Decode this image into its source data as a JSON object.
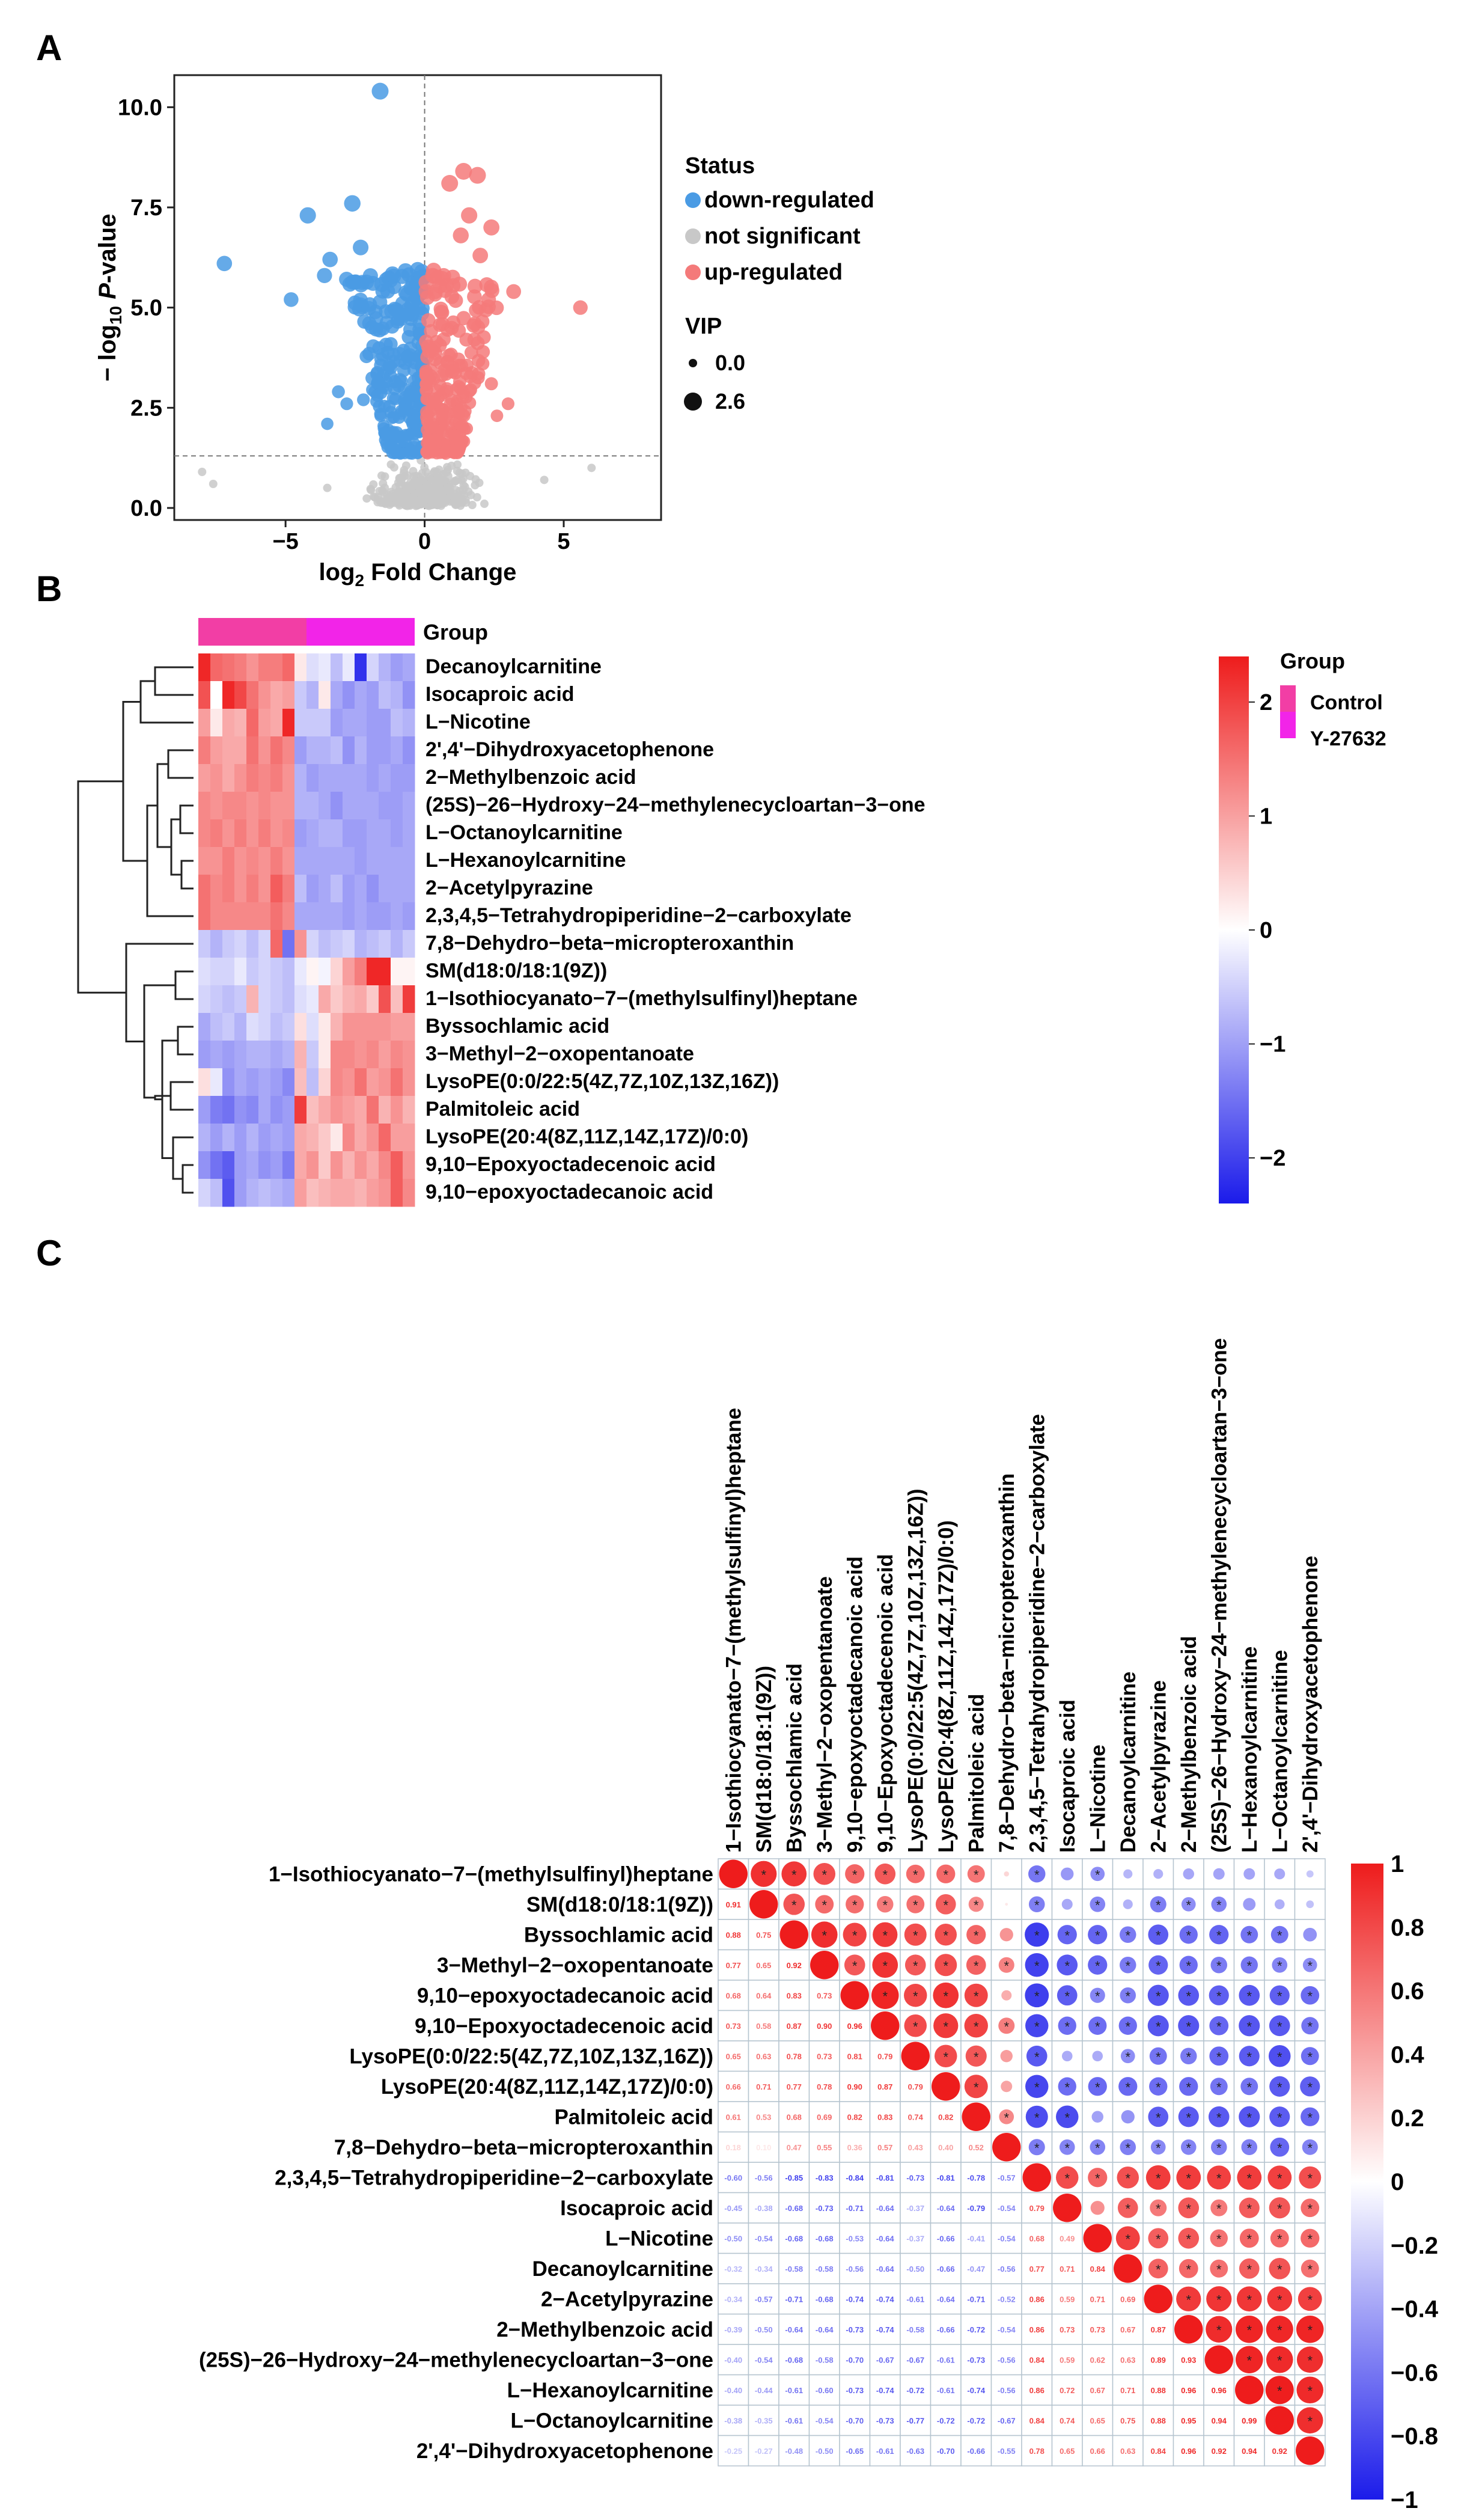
{
  "panel_labels": {
    "a": "A",
    "b": "B",
    "c": "C"
  },
  "colors": {
    "down": "#4a9be4",
    "ns": "#c8c8c8",
    "up": "#f47a7a",
    "heat_low": "#1b1bea",
    "heat_mid": "#ffffff",
    "heat_high": "#ee1c1c",
    "control": "#f23ea5",
    "treated": "#f224e8"
  },
  "chart_data": [
    {
      "type": "scatter",
      "panel": "A",
      "xlabel_main": "log",
      "xlabel_sub": "2",
      "xlabel_rest": " Fold Change",
      "ylabel_prefix": "− log",
      "ylabel_sub": "10",
      "ylabel_italic": "P",
      "ylabel_rest": "-value",
      "xlim": [
        -9.0,
        8.5
      ],
      "ylim": [
        -0.3,
        10.8
      ],
      "xticks": [
        -5,
        0,
        5
      ],
      "yticks": [
        0.0,
        2.5,
        5.0,
        7.5,
        10.0
      ],
      "ytick_labels": [
        "0.0",
        "2.5",
        "5.0",
        "7.5",
        "10.0"
      ],
      "p_threshold_y": 1.3,
      "fc_threshold_x": 0,
      "legend": {
        "status_title": "Status",
        "status": [
          {
            "label": "down-regulated",
            "key": "down"
          },
          {
            "label": "not significant",
            "key": "ns"
          },
          {
            "label": "up-regulated",
            "key": "up"
          }
        ],
        "vip_title": "VIP",
        "vip": [
          "0.0",
          "2.6"
        ]
      },
      "highlight_points": {
        "down": [
          [
            -1.6,
            10.4
          ],
          [
            -7.2,
            6.1
          ],
          [
            -4.8,
            5.2
          ],
          [
            -3.6,
            5.8
          ],
          [
            -4.2,
            7.3
          ],
          [
            -2.6,
            7.6
          ],
          [
            -3.4,
            6.2
          ],
          [
            -2.3,
            6.5
          ],
          [
            -3.1,
            2.9
          ],
          [
            -2.8,
            2.6
          ],
          [
            -2.2,
            2.7
          ],
          [
            -3.5,
            2.1
          ]
        ],
        "up": [
          [
            5.6,
            5.0
          ],
          [
            3.2,
            5.4
          ],
          [
            1.4,
            8.4
          ],
          [
            1.9,
            8.3
          ],
          [
            0.9,
            8.1
          ],
          [
            1.6,
            7.3
          ],
          [
            2.4,
            7.0
          ],
          [
            1.3,
            6.8
          ],
          [
            2.0,
            6.3
          ],
          [
            2.3,
            5.2
          ],
          [
            1.8,
            4.6
          ],
          [
            1.5,
            4.2
          ],
          [
            2.4,
            3.1
          ],
          [
            3.0,
            2.6
          ],
          [
            2.6,
            2.3
          ]
        ],
        "ns": [
          [
            -8.0,
            0.9
          ],
          [
            -7.6,
            0.6
          ],
          [
            4.3,
            0.7
          ],
          [
            6.0,
            1.0
          ],
          [
            -3.5,
            0.5
          ]
        ]
      },
      "counts": {
        "down": 260,
        "up": 240,
        "ns": 380
      }
    },
    {
      "type": "heatmap",
      "panel": "B",
      "group_label": "Group",
      "legend_title": "Group",
      "groups": [
        "Control",
        "Y-27632"
      ],
      "colorbar_ticks": [
        2,
        1,
        0,
        -1,
        -2
      ],
      "colorbar_labels": [
        "2",
        "1",
        "0",
        "−1",
        "−2"
      ],
      "rows": [
        "Decanoylcarnitine",
        "Isocaproic acid",
        "L−Nicotine",
        "2',4'−Dihydroxyacetophenone",
        "2−Methylbenzoic acid",
        "(25S)−26−Hydroxy−24−methylenecycloartan−3−one",
        "L−Octanoylcarnitine",
        "L−Hexanoylcarnitine",
        "2−Acetylpyrazine",
        "2,3,4,5−Tetrahydropiperidine−2−carboxylate",
        "7,8−Dehydro−beta−micropteroxanthin",
        "SM(d18:0/18:1(9Z))",
        "1−Isothiocyanato−7−(methylsulfinyl)heptane",
        "Byssochlamic acid",
        "3−Methyl−2−oxopentanoate",
        "LysoPE(0:0/22:5(4Z,7Z,10Z,13Z,16Z))",
        "Palmitoleic acid",
        "LysoPE(20:4(8Z,11Z,14Z,17Z)/0:0)",
        "9,10−Epoxyoctadecenoic acid",
        "9,10−epoxyoctadecanoic acid"
      ],
      "values": [
        [
          2.0,
          1.4,
          1.3,
          1.2,
          1.0,
          1.2,
          1.2,
          1.4,
          0.2,
          -0.3,
          -0.2,
          -0.6,
          -0.2,
          -1.9,
          -0.4,
          -0.7,
          -0.9,
          -0.8
        ],
        [
          1.6,
          0.0,
          2.0,
          1.7,
          1.3,
          1.0,
          0.8,
          0.9,
          -0.5,
          -0.7,
          0.2,
          -0.8,
          -1.0,
          -0.8,
          -0.9,
          -0.6,
          -0.7,
          -1.0
        ],
        [
          0.9,
          0.2,
          0.8,
          0.7,
          1.4,
          0.9,
          0.8,
          2.0,
          -0.5,
          -0.5,
          -0.5,
          -0.9,
          -0.8,
          -0.8,
          -0.9,
          -0.9,
          -0.6,
          -0.7
        ],
        [
          1.2,
          0.9,
          0.8,
          0.8,
          1.3,
          1.0,
          1.3,
          1.1,
          -0.9,
          -0.7,
          -0.7,
          -0.6,
          -1.0,
          -0.7,
          -0.9,
          -0.9,
          -0.8,
          -1.0
        ],
        [
          0.9,
          1.0,
          0.8,
          1.0,
          1.2,
          1.1,
          1.2,
          1.0,
          -0.7,
          -0.9,
          -0.8,
          -0.8,
          -0.8,
          -0.8,
          -0.9,
          -0.8,
          -0.9,
          -0.9
        ],
        [
          1.1,
          1.0,
          1.1,
          1.1,
          1.0,
          1.1,
          1.0,
          1.0,
          -0.7,
          -0.7,
          -0.8,
          -1.0,
          -0.8,
          -0.8,
          -0.8,
          -0.9,
          -0.9,
          -0.8
        ],
        [
          1.1,
          1.2,
          1.0,
          1.2,
          1.0,
          1.2,
          1.0,
          1.1,
          -0.9,
          -0.8,
          -0.7,
          -0.7,
          -0.9,
          -0.9,
          -0.8,
          -0.8,
          -0.9,
          -0.8
        ],
        [
          1.0,
          1.0,
          1.2,
          1.0,
          1.1,
          1.0,
          1.2,
          1.0,
          -0.8,
          -0.8,
          -0.8,
          -0.8,
          -0.8,
          -0.9,
          -0.8,
          -0.8,
          -0.8,
          -0.8
        ],
        [
          1.3,
          1.1,
          1.2,
          1.0,
          1.2,
          1.0,
          1.5,
          1.2,
          -0.6,
          -0.9,
          -0.8,
          -0.6,
          -0.9,
          -0.8,
          -1.0,
          -0.8,
          -0.8,
          -0.8
        ],
        [
          1.3,
          1.1,
          1.1,
          1.1,
          1.1,
          1.1,
          1.3,
          1.1,
          -0.8,
          -0.8,
          -0.8,
          -0.8,
          -0.9,
          -0.8,
          -0.9,
          -0.9,
          -0.8,
          -0.9
        ],
        [
          -0.5,
          -0.7,
          -0.5,
          -0.4,
          -0.6,
          -0.4,
          1.4,
          -1.3,
          1.0,
          -0.4,
          -0.6,
          -0.5,
          -0.4,
          -0.7,
          -0.6,
          -0.5,
          -0.7,
          -0.5
        ],
        [
          -0.3,
          -0.4,
          -0.4,
          -0.2,
          -0.5,
          -0.4,
          -0.5,
          -0.6,
          -0.2,
          0.1,
          -0.1,
          0.4,
          0.9,
          1.2,
          2.0,
          2.0,
          0.1,
          0.1
        ],
        [
          -0.4,
          -0.5,
          -0.6,
          -0.5,
          0.7,
          -0.4,
          -0.5,
          -0.6,
          -0.3,
          -0.2,
          0.8,
          0.5,
          0.7,
          0.8,
          0.5,
          1.6,
          0.6,
          1.8
        ],
        [
          -0.8,
          -0.6,
          -0.5,
          -0.7,
          -0.3,
          -0.4,
          -0.6,
          -0.5,
          0.3,
          -0.3,
          0.2,
          0.7,
          1.0,
          1.0,
          1.0,
          1.0,
          0.9,
          0.9
        ],
        [
          -0.9,
          -0.8,
          -0.9,
          -0.8,
          -0.7,
          -0.7,
          -0.8,
          -0.7,
          0.7,
          -0.5,
          0.2,
          1.1,
          1.1,
          1.0,
          1.1,
          0.9,
          1.1,
          1.0
        ],
        [
          0.3,
          -0.2,
          -1.0,
          -0.8,
          -0.9,
          -0.8,
          -0.9,
          -1.1,
          0.6,
          -0.6,
          0.4,
          1.1,
          1.0,
          1.3,
          0.9,
          1.0,
          1.3,
          1.0
        ],
        [
          -0.9,
          -1.2,
          -1.3,
          -1.0,
          -1.1,
          -0.8,
          -1.0,
          -0.9,
          1.8,
          0.6,
          0.8,
          1.0,
          0.9,
          0.8,
          1.3,
          0.7,
          1.0,
          0.7
        ],
        [
          -0.7,
          -0.9,
          -0.7,
          -0.9,
          -0.7,
          -0.9,
          -0.8,
          -0.9,
          0.8,
          0.7,
          0.5,
          0.2,
          1.1,
          0.8,
          1.0,
          1.4,
          0.9,
          0.9
        ],
        [
          -1.0,
          -1.3,
          -1.5,
          -0.9,
          -0.8,
          -1.0,
          -0.9,
          -1.2,
          0.8,
          1.0,
          0.5,
          1.0,
          0.7,
          1.0,
          0.8,
          1.1,
          1.5,
          1.0
        ],
        [
          -0.4,
          -0.6,
          -1.6,
          -0.9,
          -0.7,
          -0.6,
          -0.7,
          -0.8,
          0.9,
          0.6,
          0.7,
          0.8,
          0.8,
          0.7,
          0.9,
          1.0,
          1.5,
          1.1
        ]
      ]
    },
    {
      "type": "heatmap",
      "panel": "C",
      "subtype": "correlation",
      "labels": [
        "1−Isothiocyanato−7−(methylsulfinyl)heptane",
        "SM(d18:0/18:1(9Z))",
        "Byssochlamic acid",
        "3−Methyl−2−oxopentanoate",
        "9,10−epoxyoctadecanoic acid",
        "9,10−Epoxyoctadecenoic acid",
        "LysoPE(0:0/22:5(4Z,7Z,10Z,13Z,16Z))",
        "LysoPE(20:4(8Z,11Z,14Z,17Z)/0:0)",
        "Palmitoleic acid",
        "7,8−Dehydro−beta−micropteroxanthin",
        "2,3,4,5−Tetrahydropiperidine−2−carboxylate",
        "Isocaproic acid",
        "L−Nicotine",
        "Decanoylcarnitine",
        "2−Acetylpyrazine",
        "2−Methylbenzoic acid",
        "(25S)−26−Hydroxy−24−methylenecycloartan−3−one",
        "L−Hexanoylcarnitine",
        "L−Octanoylcarnitine",
        "2',4'−Dihydroxyacetophenone"
      ],
      "colorbar_ticks": [
        1,
        0.8,
        0.6,
        0.4,
        0.2,
        0,
        -0.2,
        -0.4,
        -0.6,
        -0.8,
        -1
      ],
      "colorbar_labels": [
        "1",
        "0.8",
        "0.6",
        "0.4",
        "0.2",
        "0",
        "−0.2",
        "−0.4",
        "−0.6",
        "−0.8",
        "−1"
      ],
      "matrix": [
        [
          1,
          0.91,
          0.88,
          0.77,
          0.68,
          0.73,
          0.65,
          0.66,
          0.61,
          0.18,
          -0.6,
          -0.45,
          -0.5,
          -0.32,
          -0.34,
          -0.39,
          -0.4,
          -0.4,
          -0.38,
          -0.25
        ],
        [
          0.91,
          1,
          0.75,
          0.65,
          0.64,
          0.58,
          0.63,
          0.71,
          0.53,
          0.1,
          -0.56,
          -0.38,
          -0.54,
          -0.34,
          -0.57,
          -0.5,
          -0.54,
          -0.44,
          -0.35,
          -0.27
        ],
        [
          0.88,
          0.75,
          1,
          0.92,
          0.83,
          0.87,
          0.78,
          0.77,
          0.68,
          0.47,
          -0.85,
          -0.68,
          -0.68,
          -0.58,
          -0.71,
          -0.64,
          -0.68,
          -0.61,
          -0.61,
          -0.48
        ],
        [
          0.77,
          0.65,
          0.92,
          1,
          0.73,
          0.9,
          0.73,
          0.78,
          0.69,
          0.55,
          -0.83,
          -0.73,
          -0.68,
          -0.58,
          -0.68,
          -0.64,
          -0.58,
          -0.6,
          -0.54,
          -0.5
        ],
        [
          0.68,
          0.64,
          0.83,
          0.73,
          1,
          0.96,
          0.81,
          0.9,
          0.82,
          0.36,
          -0.84,
          -0.71,
          -0.53,
          -0.56,
          -0.74,
          -0.73,
          -0.7,
          -0.73,
          -0.7,
          -0.65
        ],
        [
          0.73,
          0.58,
          0.87,
          0.9,
          0.96,
          1,
          0.79,
          0.87,
          0.83,
          0.57,
          -0.81,
          -0.64,
          -0.64,
          -0.64,
          -0.74,
          -0.74,
          -0.67,
          -0.74,
          -0.73,
          -0.61
        ],
        [
          0.65,
          0.63,
          0.78,
          0.73,
          0.81,
          0.79,
          1,
          0.79,
          0.74,
          0.43,
          -0.73,
          -0.37,
          -0.37,
          -0.5,
          -0.61,
          -0.58,
          -0.67,
          -0.72,
          -0.77,
          -0.63
        ],
        [
          0.66,
          0.71,
          0.77,
          0.78,
          0.9,
          0.87,
          0.79,
          1,
          0.82,
          0.4,
          -0.81,
          -0.64,
          -0.66,
          -0.66,
          -0.64,
          -0.66,
          -0.61,
          -0.61,
          -0.72,
          -0.7
        ],
        [
          0.61,
          0.53,
          0.68,
          0.69,
          0.82,
          0.83,
          0.74,
          0.82,
          1,
          0.52,
          -0.78,
          -0.79,
          -0.41,
          -0.47,
          -0.71,
          -0.72,
          -0.73,
          -0.74,
          -0.72,
          -0.66
        ],
        [
          0.18,
          0.1,
          0.47,
          0.55,
          0.36,
          0.57,
          0.43,
          0.4,
          0.52,
          1,
          -0.57,
          -0.54,
          -0.54,
          -0.56,
          -0.52,
          -0.54,
          -0.56,
          -0.56,
          -0.67,
          -0.55
        ],
        [
          -0.6,
          -0.56,
          -0.85,
          -0.83,
          -0.84,
          -0.81,
          -0.73,
          -0.81,
          -0.78,
          -0.57,
          1,
          0.79,
          0.68,
          0.77,
          0.86,
          0.86,
          0.84,
          0.86,
          0.84,
          0.78
        ],
        [
          -0.45,
          -0.38,
          -0.68,
          -0.73,
          -0.71,
          -0.64,
          -0.37,
          -0.64,
          -0.79,
          -0.54,
          0.79,
          1,
          0.49,
          0.71,
          0.59,
          0.73,
          0.59,
          0.72,
          0.74,
          0.65
        ],
        [
          -0.5,
          -0.54,
          -0.68,
          -0.68,
          -0.53,
          -0.64,
          -0.37,
          -0.66,
          -0.41,
          -0.54,
          0.68,
          0.49,
          1,
          0.84,
          0.71,
          0.73,
          0.62,
          0.67,
          0.65,
          0.66
        ],
        [
          -0.32,
          -0.34,
          -0.58,
          -0.58,
          -0.56,
          -0.64,
          -0.5,
          -0.66,
          -0.47,
          -0.56,
          0.77,
          0.71,
          0.84,
          1,
          0.69,
          0.67,
          0.63,
          0.71,
          0.75,
          0.63
        ],
        [
          -0.34,
          -0.57,
          -0.71,
          -0.68,
          -0.74,
          -0.74,
          -0.61,
          -0.64,
          -0.71,
          -0.52,
          0.86,
          0.59,
          0.71,
          0.69,
          1,
          0.87,
          0.89,
          0.88,
          0.88,
          0.84
        ],
        [
          -0.39,
          -0.5,
          -0.64,
          -0.64,
          -0.73,
          -0.74,
          -0.58,
          -0.66,
          -0.72,
          -0.54,
          0.86,
          0.73,
          0.73,
          0.67,
          0.87,
          1,
          0.93,
          0.96,
          0.95,
          0.96
        ],
        [
          -0.4,
          -0.54,
          -0.68,
          -0.58,
          -0.7,
          -0.67,
          -0.67,
          -0.61,
          -0.73,
          -0.56,
          0.84,
          0.59,
          0.62,
          0.63,
          0.89,
          0.93,
          1,
          0.96,
          0.94,
          0.92
        ],
        [
          -0.4,
          -0.44,
          -0.61,
          -0.6,
          -0.73,
          -0.74,
          -0.72,
          -0.61,
          -0.74,
          -0.56,
          0.86,
          0.72,
          0.67,
          0.71,
          0.88,
          0.96,
          0.96,
          1,
          0.99,
          0.94
        ],
        [
          -0.38,
          -0.35,
          -0.61,
          -0.54,
          -0.7,
          -0.73,
          -0.77,
          -0.72,
          -0.72,
          -0.67,
          0.84,
          0.74,
          0.65,
          0.75,
          0.88,
          0.95,
          0.94,
          0.99,
          1,
          0.92
        ],
        [
          -0.25,
          -0.27,
          -0.48,
          -0.5,
          -0.65,
          -0.61,
          -0.63,
          -0.7,
          -0.66,
          -0.55,
          0.78,
          0.65,
          0.66,
          0.63,
          0.84,
          0.96,
          0.92,
          0.94,
          0.92,
          1
        ]
      ],
      "significance_mark": "*"
    }
  ]
}
